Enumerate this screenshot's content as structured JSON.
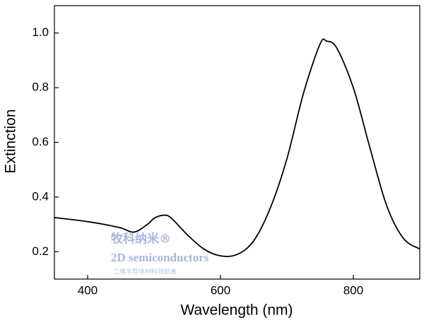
{
  "chart_data": {
    "type": "line",
    "xlabel": "Wavelength (nm)",
    "ylabel": "Extinction",
    "x": [
      350,
      375,
      400,
      425,
      450,
      470,
      490,
      500,
      513,
      525,
      550,
      575,
      600,
      625,
      650,
      675,
      700,
      725,
      750,
      760,
      775,
      800,
      825,
      850,
      875,
      900
    ],
    "values": [
      0.325,
      0.318,
      0.31,
      0.3,
      0.287,
      0.272,
      0.3,
      0.322,
      0.333,
      0.325,
      0.262,
      0.21,
      0.185,
      0.19,
      0.24,
      0.36,
      0.54,
      0.78,
      0.96,
      0.97,
      0.945,
      0.8,
      0.58,
      0.37,
      0.25,
      0.21
    ],
    "color": "#000000",
    "xlim": [
      350,
      900
    ],
    "xticks": [
      400,
      600,
      800
    ],
    "ylim": [
      0.1,
      1.1
    ],
    "yticks": [
      {
        "value": 0.2,
        "label": "0.2"
      },
      {
        "value": 0.4,
        "label": "0.4"
      },
      {
        "value": 0.6,
        "label": "0.6"
      },
      {
        "value": 0.8,
        "label": "0.8"
      },
      {
        "value": 1.0,
        "label": "1.0"
      }
    ],
    "annotations": [
      "牧科纳米®",
      "2D semiconductors",
      "二维半导体材料领航者"
    ]
  }
}
